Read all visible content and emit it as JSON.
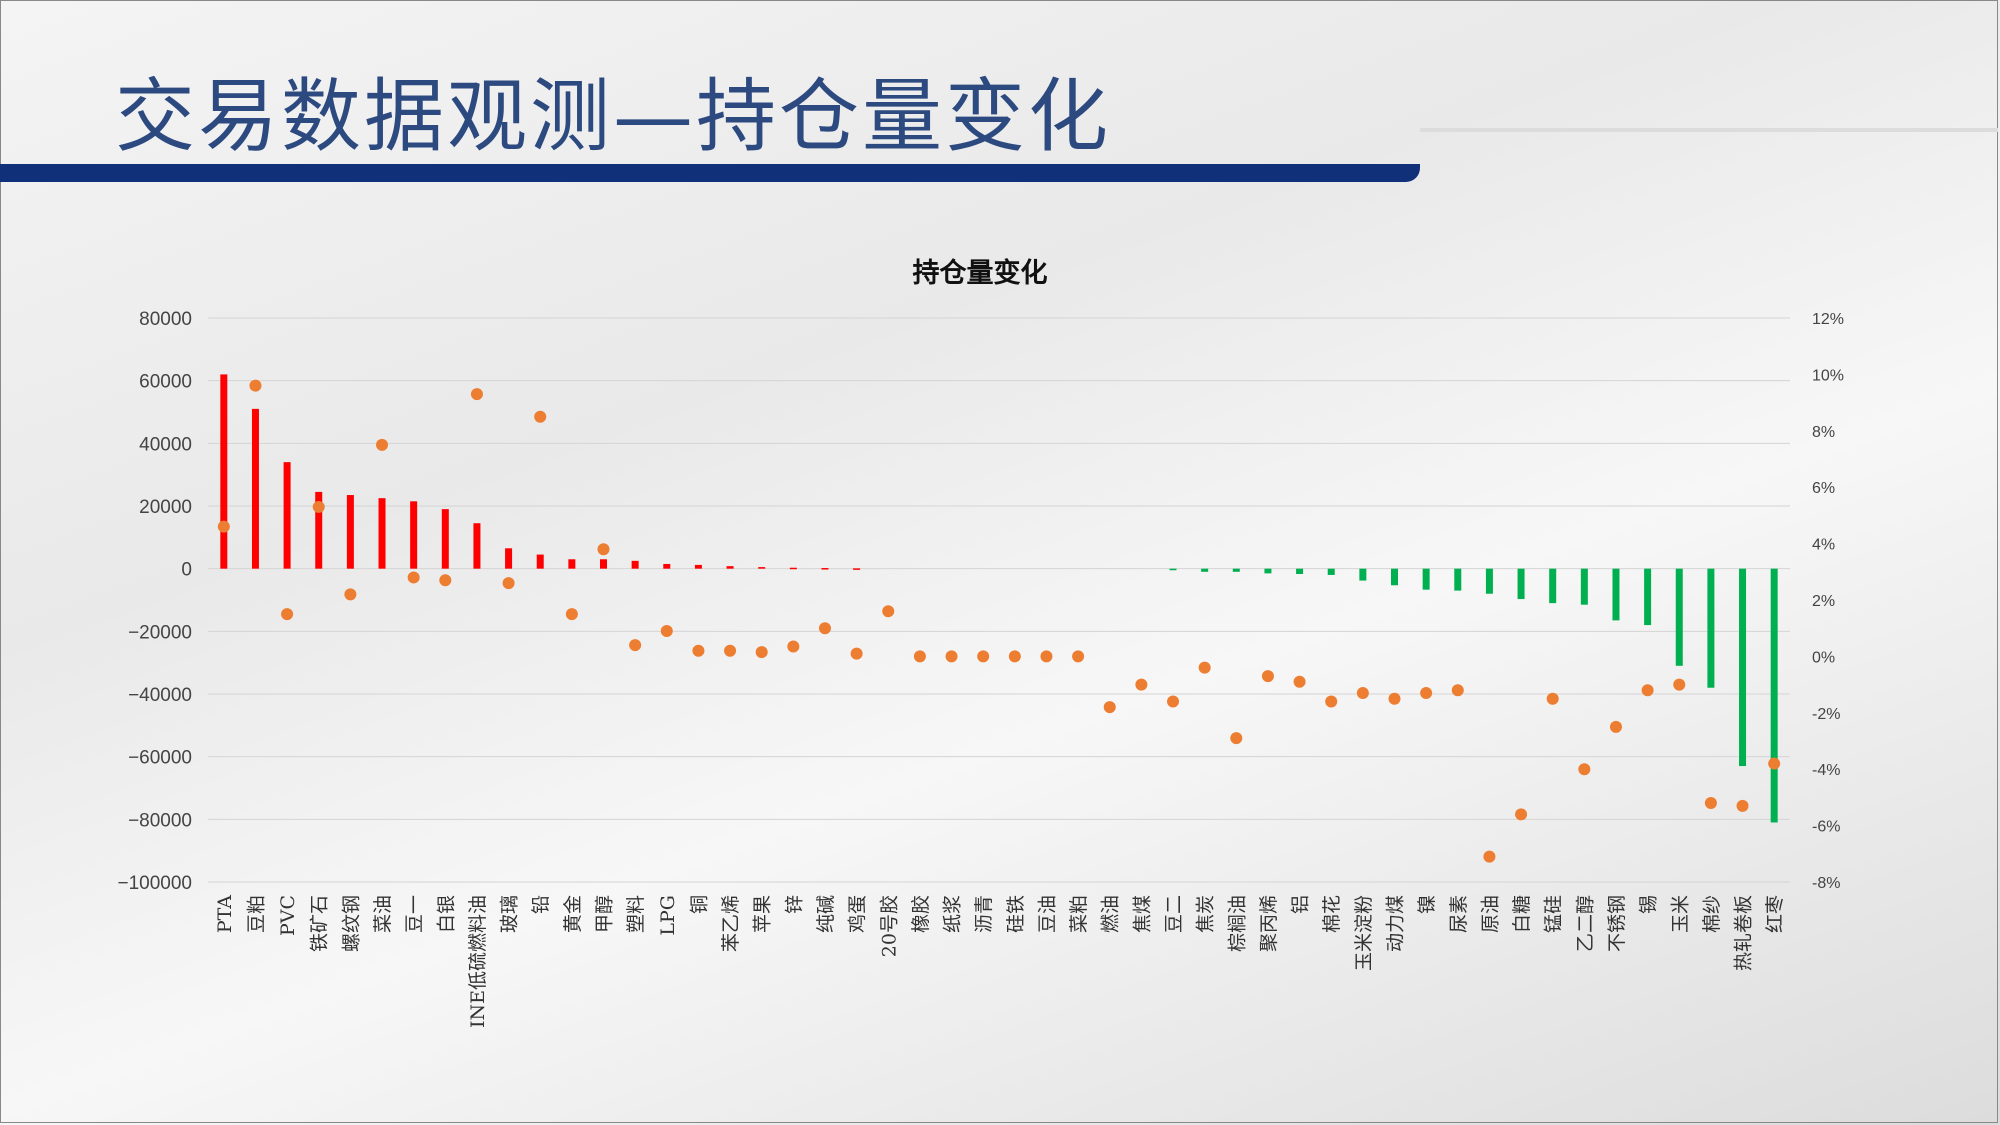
{
  "slide": {
    "title": "交易数据观测—持仓量变化"
  },
  "colors": {
    "title_bar": "#11307a",
    "positive_bar": "#ff0000",
    "negative_bar": "#00b050",
    "marker": "#ed7d31"
  },
  "chart_data": {
    "type": "bar",
    "title": "持仓量变化",
    "categories": [
      "PTA",
      "豆粕",
      "PVC",
      "铁矿石",
      "螺纹钢",
      "菜油",
      "豆一",
      "白银",
      "INE低硫燃料油",
      "玻璃",
      "铅",
      "黄金",
      "甲醇",
      "塑料",
      "LPG",
      "铜",
      "苯乙烯",
      "苹果",
      "锌",
      "纯碱",
      "鸡蛋",
      "20号胶",
      "橡胶",
      "纸浆",
      "沥青",
      "硅铁",
      "豆油",
      "菜粕",
      "燃油",
      "焦煤",
      "豆二",
      "焦炭",
      "棕榈油",
      "聚丙烯",
      "铝",
      "棉花",
      "玉米淀粉",
      "动力煤",
      "镍",
      "尿素",
      "原油",
      "白糖",
      "锰硅",
      "乙二醇",
      "不锈钢",
      "锡",
      "玉米",
      "棉纱",
      "热轧卷板",
      "红枣"
    ],
    "series": [
      {
        "axis": "left",
        "type": "bar",
        "values": [
          62000,
          51000,
          34000,
          24500,
          23500,
          22500,
          21500,
          19000,
          14500,
          6500,
          4500,
          3000,
          3000,
          2500,
          1500,
          1200,
          800,
          500,
          300,
          200,
          100,
          0,
          0,
          0,
          0,
          0,
          0,
          0,
          0,
          0,
          -500,
          -1000,
          -1000,
          -1500,
          -1700,
          -2000,
          -3800,
          -5300,
          -6700,
          -7000,
          -8000,
          -9700,
          -11000,
          -11500,
          -16500,
          -18000,
          -31000,
          -38000,
          -63000,
          -81000
        ]
      },
      {
        "axis": "right",
        "type": "scatter",
        "values": [
          4.6,
          9.6,
          1.5,
          5.3,
          2.2,
          7.5,
          2.8,
          2.7,
          9.3,
          2.6,
          8.5,
          1.5,
          3.8,
          0.4,
          0.9,
          0.2,
          0.2,
          0.15,
          0.35,
          1.0,
          0.1,
          1.6,
          0,
          0,
          0,
          0,
          0,
          0,
          -1.8,
          -1.0,
          -1.6,
          -0.4,
          -2.9,
          -0.7,
          -0.9,
          -1.6,
          -1.3,
          -1.5,
          -1.3,
          -1.2,
          -7.1,
          -5.6,
          -1.5,
          -4.0,
          -2.5,
          -1.2,
          -1.0,
          -5.2,
          -5.3,
          -3.8
        ]
      }
    ],
    "ylim": [
      -100000,
      80000
    ],
    "yticks": [
      "80000",
      "60000",
      "40000",
      "20000",
      "0",
      "−20000",
      "−40000",
      "−60000",
      "−80000",
      "−100000"
    ],
    "y2lim": [
      -8,
      12
    ],
    "y2ticks": [
      "12%",
      "10%",
      "8%",
      "6%",
      "4%",
      "2%",
      "0%",
      "-2%",
      "-4%",
      "-6%",
      "-8%"
    ],
    "grid": true,
    "legend": "none"
  }
}
